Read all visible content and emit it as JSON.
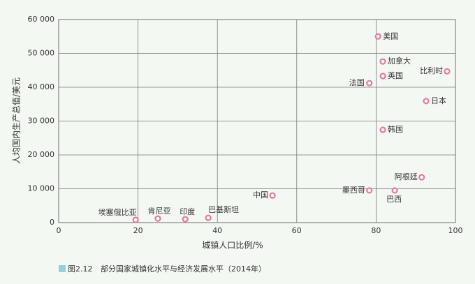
{
  "chart_data": {
    "type": "scatter",
    "caption": {
      "number": "图2.12",
      "text": "部分国家城镇化水平与经济发展水平（2014年）"
    },
    "x_label": "城镇人口比例/%",
    "y_label": "人均国内生产总值/美元",
    "labels": [
      "美国",
      "加拿大",
      "英国",
      "法国",
      "比利时",
      "日本",
      "韩国",
      "阿根廷",
      "墨西哥",
      "巴西",
      "中国",
      "埃塞俄比亚",
      "肯尼亚",
      "印度",
      "巴基斯坦"
    ],
    "x": [
      80.5,
      81.7,
      81.7,
      78.3,
      97.9,
      92.6,
      81.7,
      91.5,
      78.3,
      84.7,
      53.9,
      19.4,
      25,
      31.9,
      37.7
    ],
    "values": [
      55000,
      47600,
      43300,
      41200,
      44700,
      35900,
      27400,
      13400,
      9500,
      9500,
      8000,
      800,
      1200,
      1000,
      1400
    ],
    "color": "#e8799f",
    "xlim": [
      0,
      100
    ],
    "xticks": [
      0,
      20,
      40,
      60,
      80,
      100
    ],
    "ylim": [
      0,
      60000
    ],
    "yticks": [
      0,
      {
        "value": 10000,
        "label": "10 000"
      },
      {
        "value": 20000,
        "label": "20 000"
      },
      {
        "value": 30000,
        "label": "30 000"
      },
      {
        "value": 40000,
        "label": "40 000"
      },
      {
        "value": 50000,
        "label": "50 000"
      },
      {
        "value": 60000,
        "label": "60 000"
      }
    ],
    "grid": true
  }
}
